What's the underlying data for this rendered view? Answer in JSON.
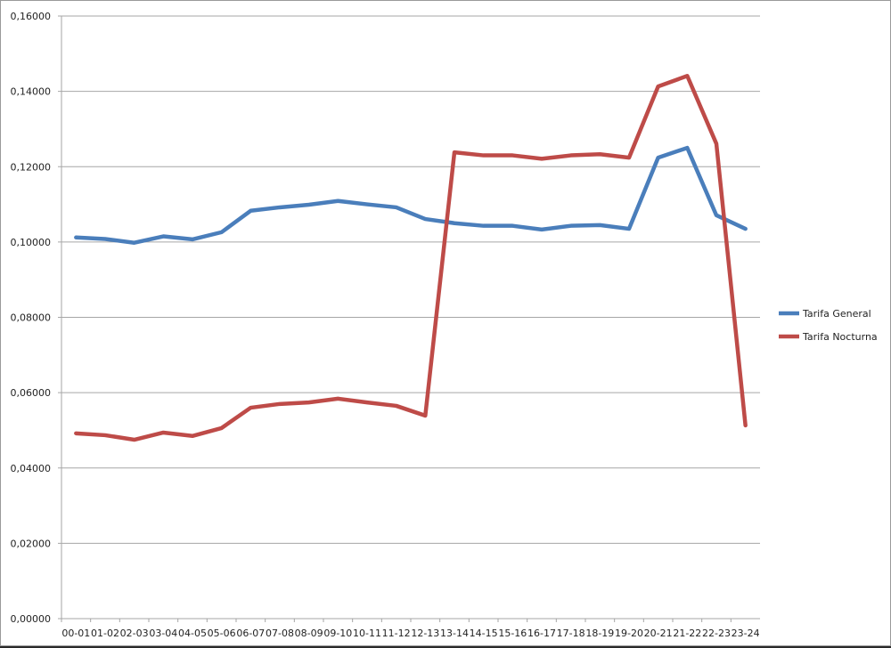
{
  "chart_data": {
    "type": "line",
    "title": "",
    "xlabel": "",
    "ylabel": "",
    "ylim": [
      0,
      0.16
    ],
    "yticks": [
      "0,00000",
      "0,02000",
      "0,04000",
      "0,06000",
      "0,08000",
      "0,10000",
      "0,12000",
      "0,14000",
      "0,16000"
    ],
    "ytick_values": [
      0,
      0.02,
      0.04,
      0.06,
      0.08,
      0.1,
      0.12,
      0.14,
      0.16
    ],
    "grid": true,
    "legend_position": "right",
    "categories": [
      "00-01",
      "01-02",
      "02-03",
      "03-04",
      "04-05",
      "05-06",
      "06-07",
      "07-08",
      "08-09",
      "09-10",
      "10-11",
      "11-12",
      "12-13",
      "13-14",
      "14-15",
      "15-16",
      "16-17",
      "17-18",
      "18-19",
      "19-20",
      "20-21",
      "21-22",
      "22-23",
      "23-24"
    ],
    "series": [
      {
        "name": "Tarifa General",
        "color": "#4a7ebb",
        "values": [
          0.1012,
          0.1008,
          0.0998,
          0.1015,
          0.1007,
          0.1026,
          0.1083,
          0.1092,
          0.1099,
          0.1109,
          0.11,
          0.1092,
          0.1061,
          0.105,
          0.1043,
          0.1043,
          0.1033,
          0.1043,
          0.1045,
          0.1035,
          0.1224,
          0.125,
          0.1071,
          0.1035
        ]
      },
      {
        "name": "Tarifa Nocturna",
        "color": "#be4b48",
        "values": [
          0.0492,
          0.0487,
          0.0475,
          0.0494,
          0.0485,
          0.0506,
          0.056,
          0.057,
          0.0574,
          0.0584,
          0.0574,
          0.0565,
          0.0539,
          0.1238,
          0.123,
          0.123,
          0.1221,
          0.123,
          0.1233,
          0.1224,
          0.1413,
          0.1441,
          0.1261,
          0.0513
        ]
      }
    ]
  }
}
